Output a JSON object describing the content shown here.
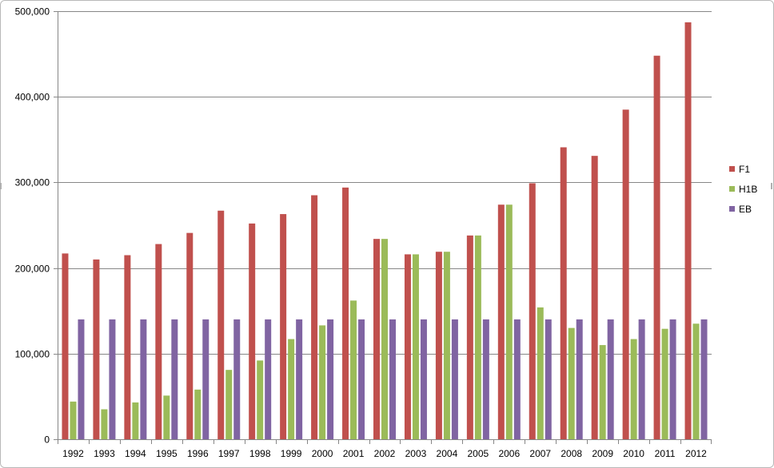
{
  "chart_data": {
    "type": "bar",
    "title": "",
    "xlabel": "",
    "ylabel": "",
    "ylim": [
      0,
      500000
    ],
    "y_ticks": [
      "0",
      "100,000",
      "200,000",
      "300,000",
      "400,000",
      "500,000"
    ],
    "y_tick_values": [
      0,
      100000,
      200000,
      300000,
      400000,
      500000
    ],
    "grid": true,
    "legend_position": "right",
    "categories": [
      "1992",
      "1993",
      "1994",
      "1995",
      "1996",
      "1997",
      "1998",
      "1999",
      "2000",
      "2001",
      "2002",
      "2003",
      "2004",
      "2005",
      "2006",
      "2007",
      "2008",
      "2009",
      "2010",
      "2011",
      "2012"
    ],
    "series": [
      {
        "name": "F1",
        "color": "#C0504D",
        "values": [
          217000,
          210000,
          215000,
          228000,
          241000,
          267000,
          252000,
          263000,
          285000,
          294000,
          234000,
          216000,
          219000,
          238000,
          274000,
          299000,
          341000,
          331000,
          385000,
          448000,
          487000
        ]
      },
      {
        "name": "H1B",
        "color": "#9BBB59",
        "values": [
          44000,
          35000,
          43000,
          51000,
          58000,
          81000,
          92000,
          117000,
          133000,
          162000,
          234000,
          216000,
          219000,
          238000,
          274000,
          154000,
          130000,
          110000,
          117000,
          129000,
          135000
        ]
      },
      {
        "name": "EB",
        "color": "#8064A2",
        "values": [
          140000,
          140000,
          140000,
          140000,
          140000,
          140000,
          140000,
          140000,
          140000,
          140000,
          140000,
          140000,
          140000,
          140000,
          140000,
          140000,
          140000,
          140000,
          140000,
          140000,
          140000
        ]
      }
    ]
  }
}
